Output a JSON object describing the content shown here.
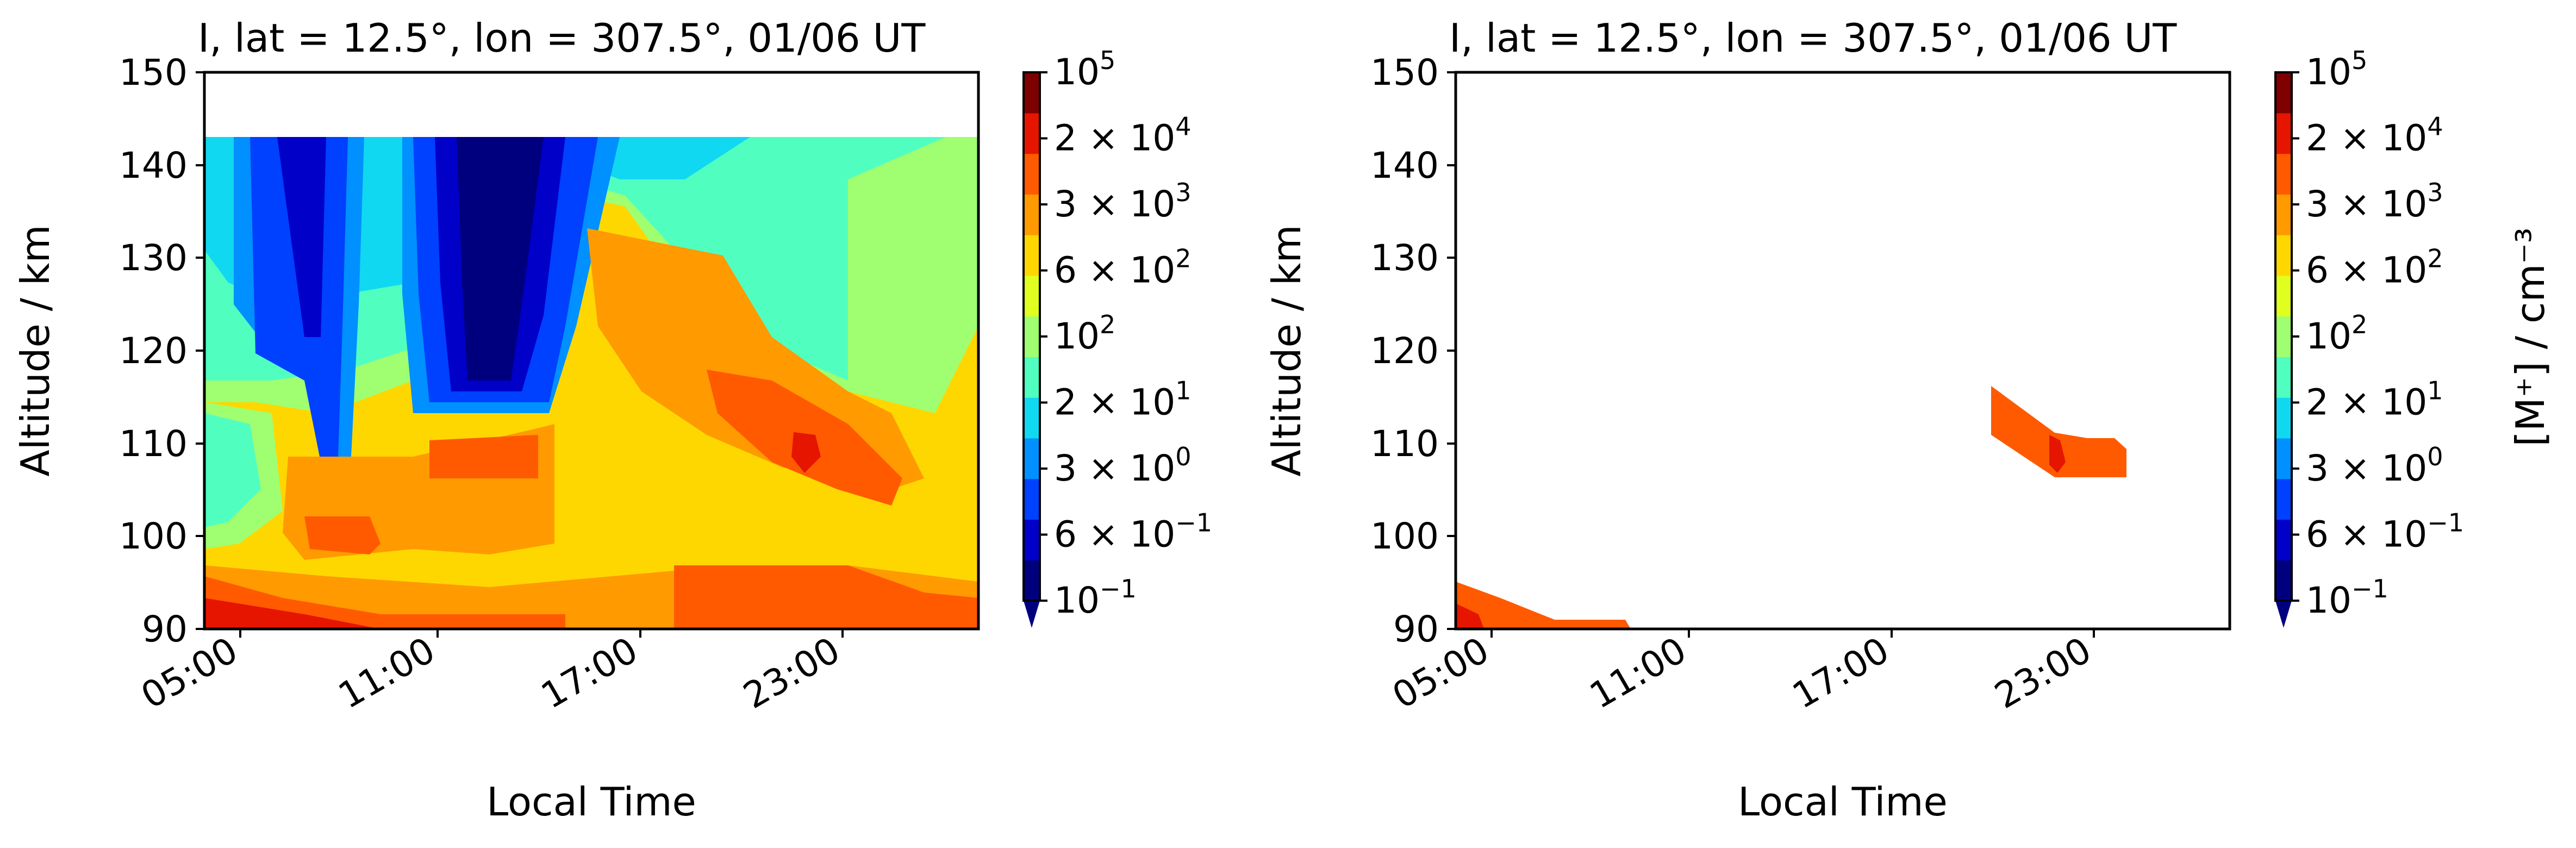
{
  "chart_data": [
    {
      "type": "heatmap",
      "title": "I, lat = 12.5°, lon = 307.5°, 01/06 UT",
      "xlabel": "Local Time",
      "ylabel": "Altitude / km",
      "x_ticks": [
        "05:00",
        "11:00",
        "17:00",
        "23:00"
      ],
      "y_ticks": [
        "150",
        "140",
        "130",
        "120",
        "110",
        "100",
        "90"
      ],
      "ylim": [
        90,
        150
      ],
      "data_top_altitude_km": 143,
      "colorbar": {
        "scale": "log",
        "extend": "min",
        "range": [
          0.1,
          100000
        ],
        "tick_labels": [
          {
            "mantissa": "",
            "exponent": "5"
          },
          {
            "mantissa": "2 × ",
            "exponent": "4"
          },
          {
            "mantissa": "3 × ",
            "exponent": "3"
          },
          {
            "mantissa": "6 × ",
            "exponent": "2"
          },
          {
            "mantissa": "",
            "exponent": "2"
          },
          {
            "mantissa": "2 × ",
            "exponent": "1"
          },
          {
            "mantissa": "3 × ",
            "exponent": "0"
          },
          {
            "mantissa": "6 × ",
            "exponent": "−1"
          },
          {
            "mantissa": "",
            "exponent": "−1"
          }
        ],
        "label": ""
      }
    },
    {
      "type": "heatmap",
      "title": "I, lat = 12.5°, lon = 307.5°, 01/06 UT",
      "xlabel": "Local Time",
      "ylabel": "Altitude / km",
      "x_ticks": [
        "05:00",
        "11:00",
        "17:00",
        "23:00"
      ],
      "y_ticks": [
        "150",
        "140",
        "130",
        "120",
        "110",
        "100",
        "90"
      ],
      "ylim": [
        90,
        150
      ],
      "colorbar": {
        "scale": "log",
        "extend": "min",
        "range": [
          0.1,
          100000
        ],
        "tick_labels": [
          {
            "mantissa": "",
            "exponent": "5"
          },
          {
            "mantissa": "2 × ",
            "exponent": "4"
          },
          {
            "mantissa": "3 × ",
            "exponent": "3"
          },
          {
            "mantissa": "6 × ",
            "exponent": "2"
          },
          {
            "mantissa": "",
            "exponent": "2"
          },
          {
            "mantissa": "2 × ",
            "exponent": "1"
          },
          {
            "mantissa": "3 × ",
            "exponent": "0"
          },
          {
            "mantissa": "6 × ",
            "exponent": "−1"
          },
          {
            "mantissa": "",
            "exponent": "−1"
          }
        ],
        "label": "[M⁺] / cm⁻³"
      }
    }
  ],
  "colormap": [
    "#00007f",
    "#0000c8",
    "#0040ff",
    "#0090ff",
    "#10d8f0",
    "#50ffc0",
    "#a0ff70",
    "#e0ff20",
    "#ffd700",
    "#ff9a00",
    "#ff5a00",
    "#e51500",
    "#7f0000"
  ]
}
